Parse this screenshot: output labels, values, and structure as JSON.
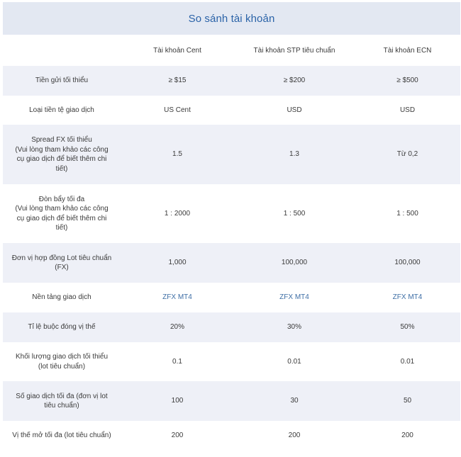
{
  "title": "So sánh tài khoản",
  "columns": [
    "",
    "Tài khoản Cent",
    "Tài khoản STP tiêu chuẩn",
    "Tài khoản ECN"
  ],
  "rows": [
    {
      "label": "Tiền gửi tối thiểu",
      "cells": [
        "≥ $15",
        "≥ $200",
        "≥ $500"
      ]
    },
    {
      "label": "Loại tiền tệ giao dịch",
      "cells": [
        "US Cent",
        "USD",
        "USD"
      ]
    },
    {
      "label": "Spread FX tối thiểu\n(Vui lòng tham khảo các công\ncụ giao dịch để biết thêm chi\ntiết)",
      "cells": [
        "1.5",
        "1.3",
        "Từ 0,2"
      ]
    },
    {
      "label": "Đòn bẩy tối đa\n(Vui lòng tham khảo các công\ncụ giao dịch để biết thêm chi\ntiết)",
      "cells": [
        "1 : 2000",
        "1 : 500",
        "1 : 500"
      ]
    },
    {
      "label": "Đơn vị hợp đồng Lot tiêu chuẩn\n(FX)",
      "cells": [
        "1,000",
        "100,000",
        "100,000"
      ]
    },
    {
      "label": "Nền tảng giao dịch",
      "cells": [
        "ZFX MT4",
        "ZFX MT4",
        "ZFX MT4"
      ]
    },
    {
      "label": "Tỉ lệ buộc đóng vị thế",
      "cells": [
        "20%",
        "30%",
        "50%"
      ]
    },
    {
      "label": "Khối lượng giao dịch tối thiểu\n(lot tiêu chuẩn)",
      "cells": [
        "0.1",
        "0.01",
        "0.01"
      ]
    },
    {
      "label": "Số giao dịch tối đa (đơn vị lot\ntiêu chuẩn)",
      "cells": [
        "100",
        "30",
        "50"
      ]
    },
    {
      "label": "Vị thế mở tối đa (lot tiêu chuẩn)",
      "cells": [
        "200",
        "200",
        "200"
      ]
    }
  ]
}
